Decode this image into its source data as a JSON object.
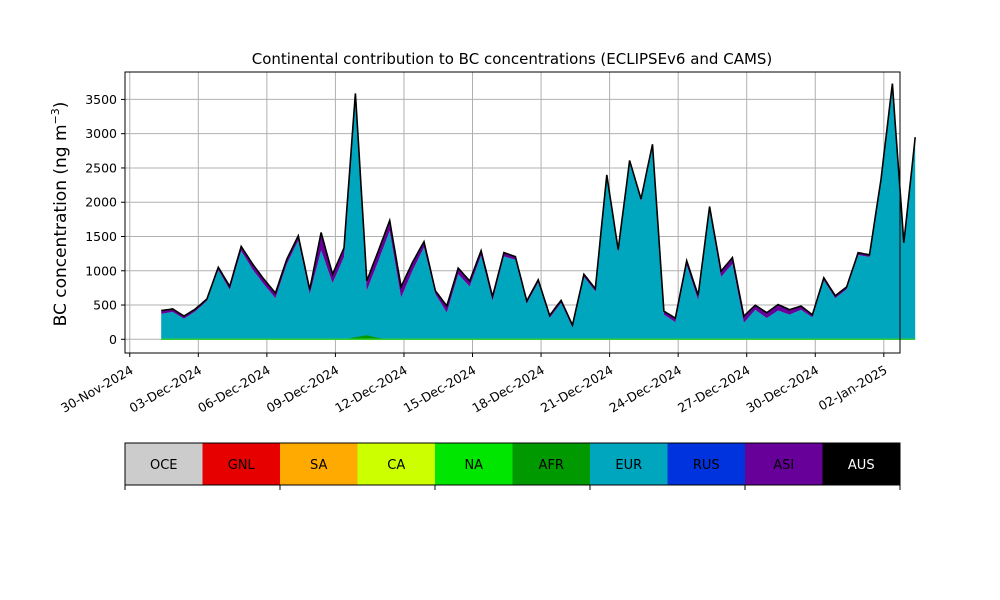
{
  "chart_data": {
    "type": "area",
    "title": "Continental contribution to BC concentrations (ECLIPSEv6 and CAMS)",
    "ylabel_main": "BC concentration (ng m",
    "ylabel_sup": "−3",
    "ylabel_close": ")",
    "xlabel": "",
    "ylim": [
      -200,
      3900
    ],
    "yticks": [
      0,
      500,
      1000,
      1500,
      2000,
      2500,
      3000,
      3500
    ],
    "xlim": [
      "2024-11-29T19:00",
      "2025-01-02T17:00"
    ],
    "xticks": [
      "30-Nov-2024",
      "03-Dec-2024",
      "06-Dec-2024",
      "09-Dec-2024",
      "12-Dec-2024",
      "15-Dec-2024",
      "18-Dec-2024",
      "21-Dec-2024",
      "24-Dec-2024",
      "27-Dec-2024",
      "30-Dec-2024",
      "02-Jan-2025"
    ],
    "grid": true,
    "stacked": true,
    "series": [
      {
        "name": "EUR",
        "color": "#00a6bd",
        "points": [
          [
            "2024-12-01T09:00",
            370
          ],
          [
            "2024-12-01T21:00",
            400
          ],
          [
            "2024-12-02T09:00",
            300
          ],
          [
            "2024-12-02T21:00",
            410
          ],
          [
            "2024-12-03T09:00",
            560
          ],
          [
            "2024-12-03T21:00",
            1010
          ],
          [
            "2024-12-04T09:00",
            720
          ],
          [
            "2024-12-04T21:00",
            1290
          ],
          [
            "2024-12-05T09:00",
            1020
          ],
          [
            "2024-12-05T21:00",
            800
          ],
          [
            "2024-12-06T09:00",
            600
          ],
          [
            "2024-12-06T21:00",
            1100
          ],
          [
            "2024-12-07T09:00",
            1440
          ],
          [
            "2024-12-07T21:00",
            660
          ],
          [
            "2024-12-08T09:00",
            1300
          ],
          [
            "2024-12-08T21:00",
            820
          ],
          [
            "2024-12-09T09:00",
            1200
          ],
          [
            "2024-12-09T21:00",
            3450
          ],
          [
            "2024-12-10T09:00",
            710
          ],
          [
            "2024-12-10T21:00",
            1140
          ],
          [
            "2024-12-11T09:00",
            1580
          ],
          [
            "2024-12-11T21:00",
            610
          ],
          [
            "2024-12-12T09:00",
            1000
          ],
          [
            "2024-12-12T21:00",
            1340
          ],
          [
            "2024-12-13T09:00",
            660
          ],
          [
            "2024-12-13T21:00",
            390
          ],
          [
            "2024-12-14T09:00",
            950
          ],
          [
            "2024-12-14T21:00",
            770
          ],
          [
            "2024-12-15T09:00",
            1220
          ],
          [
            "2024-12-15T21:00",
            560
          ],
          [
            "2024-12-16T09:00",
            1210
          ],
          [
            "2024-12-16T21:00",
            1160
          ],
          [
            "2024-12-17T09:00",
            520
          ],
          [
            "2024-12-17T21:00",
            830
          ],
          [
            "2024-12-18T09:00",
            310
          ],
          [
            "2024-12-18T21:00",
            530
          ],
          [
            "2024-12-19T09:00",
            170
          ],
          [
            "2024-12-19T21:00",
            910
          ],
          [
            "2024-12-20T09:00",
            700
          ],
          [
            "2024-12-20T21:00",
            2360
          ],
          [
            "2024-12-21T09:00",
            1270
          ],
          [
            "2024-12-21T21:00",
            2570
          ],
          [
            "2024-12-22T09:00",
            2010
          ],
          [
            "2024-12-22T21:00",
            2800
          ],
          [
            "2024-12-23T09:00",
            360
          ],
          [
            "2024-12-23T21:00",
            250
          ],
          [
            "2024-12-24T09:00",
            1080
          ],
          [
            "2024-12-24T21:00",
            570
          ],
          [
            "2024-12-25T09:00",
            1860
          ],
          [
            "2024-12-25T21:00",
            910
          ],
          [
            "2024-12-26T09:00",
            1100
          ],
          [
            "2024-12-26T21:00",
            240
          ],
          [
            "2024-12-27T09:00",
            430
          ],
          [
            "2024-12-27T21:00",
            310
          ],
          [
            "2024-12-28T09:00",
            420
          ],
          [
            "2024-12-28T21:00",
            360
          ],
          [
            "2024-12-29T09:00",
            430
          ],
          [
            "2024-12-29T21:00",
            320
          ],
          [
            "2024-12-30T09:00",
            860
          ],
          [
            "2024-12-30T21:00",
            600
          ],
          [
            "2024-12-31T09:00",
            730
          ],
          [
            "2024-12-31T21:00",
            1230
          ],
          [
            "2025-01-01T09:00",
            1200
          ],
          [
            "2025-01-01T21:00",
            2300
          ],
          [
            "2025-01-02T09:00",
            3700
          ],
          [
            "2025-01-02T21:00",
            1380
          ],
          [
            "2025-01-03T09:00",
            2920
          ]
        ]
      },
      {
        "name": "ASI",
        "color": "#660099",
        "points": [
          [
            "2024-12-01T09:00",
            40
          ],
          [
            "2024-12-03T09:00",
            20
          ],
          [
            "2024-12-05T09:00",
            70
          ],
          [
            "2024-12-07T21:00",
            60
          ],
          [
            "2024-12-08T09:00",
            250
          ],
          [
            "2024-12-08T21:00",
            120
          ],
          [
            "2024-12-11T21:00",
            150
          ],
          [
            "2024-12-13T09:00",
            40
          ],
          [
            "2024-12-13T21:00",
            90
          ],
          [
            "2024-12-17T09:00",
            30
          ],
          [
            "2024-12-22T09:00",
            30
          ],
          [
            "2024-12-26T21:00",
            90
          ],
          [
            "2024-12-27T09:00",
            60
          ],
          [
            "2024-12-28T09:00",
            80
          ],
          [
            "2024-12-29T21:00",
            30
          ],
          [
            "2025-01-03T09:00",
            20
          ]
        ]
      },
      {
        "name": "AFR",
        "color": "#009900",
        "points": [
          [
            "2024-12-09T09:00",
            0
          ],
          [
            "2024-12-10T09:00",
            60
          ],
          [
            "2024-12-10T21:00",
            20
          ],
          [
            "2024-12-11T09:00",
            0
          ]
        ]
      }
    ],
    "legend": [
      {
        "name": "OCE",
        "color": "#cccccc"
      },
      {
        "name": "GNL",
        "color": "#e60000"
      },
      {
        "name": "SA",
        "color": "#ffaa00"
      },
      {
        "name": "CA",
        "color": "#ccff00"
      },
      {
        "name": "NA",
        "color": "#00e600"
      },
      {
        "name": "AFR",
        "color": "#009900"
      },
      {
        "name": "EUR",
        "color": "#00a6bd"
      },
      {
        "name": "RUS",
        "color": "#0033dd"
      },
      {
        "name": "ASI",
        "color": "#660099"
      },
      {
        "name": "AUS",
        "color": "#000000"
      }
    ]
  }
}
